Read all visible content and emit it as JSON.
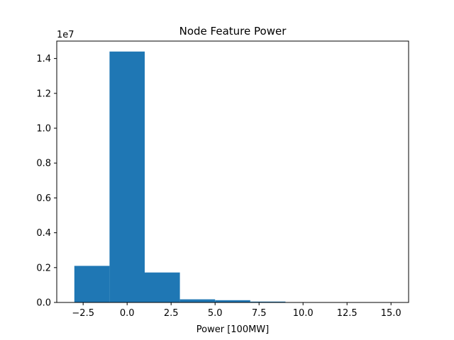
{
  "chart_data": {
    "type": "bar",
    "title": "Node Feature Power",
    "xlabel": "Power [100MW]",
    "ylabel": "",
    "y_offset_label": "1e7",
    "bar_color": "#1f77b4",
    "xlim": [
      -4,
      16
    ],
    "ylim": [
      0,
      15000000
    ],
    "bins": [
      {
        "x0": -3,
        "x1": -1,
        "value": 2100000
      },
      {
        "x0": -1,
        "x1": 1,
        "value": 14400000
      },
      {
        "x0": 1,
        "x1": 3,
        "value": 1720000
      },
      {
        "x0": 3,
        "x1": 5,
        "value": 180000
      },
      {
        "x0": 5,
        "x1": 7,
        "value": 130000
      },
      {
        "x0": 7,
        "x1": 9,
        "value": 50000
      },
      {
        "x0": 9,
        "x1": 11,
        "value": 10000
      },
      {
        "x0": 11,
        "x1": 13,
        "value": 5000
      },
      {
        "x0": 13,
        "x1": 15,
        "value": 3000
      }
    ],
    "x_ticks": [
      {
        "value": -2.5,
        "label": "−2.5"
      },
      {
        "value": 0,
        "label": "0.0"
      },
      {
        "value": 2.5,
        "label": "2.5"
      },
      {
        "value": 5,
        "label": "5.0"
      },
      {
        "value": 7.5,
        "label": "7.5"
      },
      {
        "value": 10,
        "label": "10.0"
      },
      {
        "value": 12.5,
        "label": "12.5"
      },
      {
        "value": 15,
        "label": "15.0"
      }
    ],
    "y_ticks": [
      {
        "value": 0,
        "label": "0.0"
      },
      {
        "value": 2000000,
        "label": "0.2"
      },
      {
        "value": 4000000,
        "label": "0.4"
      },
      {
        "value": 6000000,
        "label": "0.6"
      },
      {
        "value": 8000000,
        "label": "0.8"
      },
      {
        "value": 10000000,
        "label": "1.0"
      },
      {
        "value": 12000000,
        "label": "1.2"
      },
      {
        "value": 14000000,
        "label": "1.4"
      }
    ],
    "grid": false,
    "legend": "none"
  }
}
